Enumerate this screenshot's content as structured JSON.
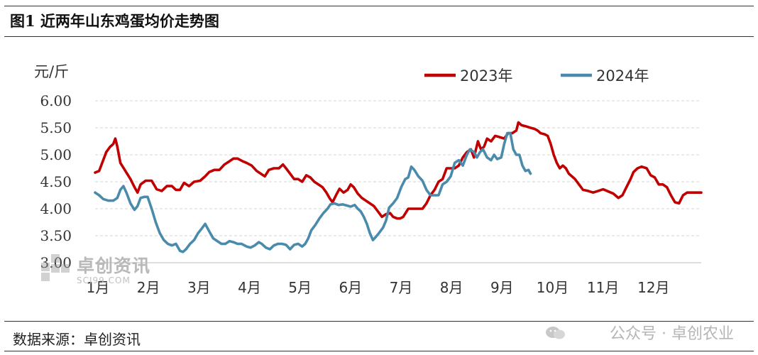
{
  "figure": {
    "title": "图1 近两年山东鸡蛋均价走势图",
    "source": "数据来源：卓创资讯",
    "watermark": "公众号 · 卓创农业",
    "logo_cn": "卓创资讯",
    "logo_en": "SCI99.COM"
  },
  "chart_data": {
    "type": "line",
    "ylabel": "元/斤",
    "ylim": [
      3.0,
      6.0
    ],
    "yticks": [
      "3.00",
      "3.50",
      "4.00",
      "4.50",
      "5.00",
      "5.50",
      "6.00"
    ],
    "ytick_values": [
      3.0,
      3.5,
      4.0,
      4.5,
      5.0,
      5.5,
      6.0
    ],
    "xlim": [
      0,
      12
    ],
    "x_unit": "month index (0 = 1月)",
    "xticks": [
      "1月",
      "2月",
      "3月",
      "4月",
      "5月",
      "6月",
      "7月",
      "8月",
      "9月",
      "10月",
      "11月",
      "12月"
    ],
    "xtick_values": [
      0,
      1,
      2,
      3,
      4,
      5,
      6,
      7,
      8,
      9,
      10,
      11
    ],
    "legend_position": "top-right",
    "grid": "horizontal dashed",
    "series": [
      {
        "name": "2023年",
        "color": "#c00000",
        "points": [
          [
            0.0,
            4.67
          ],
          [
            0.08,
            4.7
          ],
          [
            0.14,
            4.85
          ],
          [
            0.22,
            5.05
          ],
          [
            0.3,
            5.15
          ],
          [
            0.36,
            5.2
          ],
          [
            0.4,
            5.3
          ],
          [
            0.44,
            5.15
          ],
          [
            0.5,
            4.85
          ],
          [
            0.6,
            4.7
          ],
          [
            0.7,
            4.55
          ],
          [
            0.78,
            4.4
          ],
          [
            0.84,
            4.3
          ],
          [
            0.9,
            4.45
          ],
          [
            1.0,
            4.52
          ],
          [
            1.12,
            4.52
          ],
          [
            1.22,
            4.36
          ],
          [
            1.32,
            4.33
          ],
          [
            1.42,
            4.42
          ],
          [
            1.52,
            4.42
          ],
          [
            1.6,
            4.35
          ],
          [
            1.68,
            4.35
          ],
          [
            1.76,
            4.48
          ],
          [
            1.86,
            4.42
          ],
          [
            1.96,
            4.5
          ],
          [
            2.08,
            4.52
          ],
          [
            2.18,
            4.6
          ],
          [
            2.26,
            4.68
          ],
          [
            2.36,
            4.72
          ],
          [
            2.46,
            4.72
          ],
          [
            2.56,
            4.82
          ],
          [
            2.66,
            4.88
          ],
          [
            2.74,
            4.93
          ],
          [
            2.82,
            4.93
          ],
          [
            2.92,
            4.88
          ],
          [
            3.0,
            4.85
          ],
          [
            3.1,
            4.8
          ],
          [
            3.2,
            4.7
          ],
          [
            3.28,
            4.65
          ],
          [
            3.36,
            4.6
          ],
          [
            3.44,
            4.72
          ],
          [
            3.54,
            4.75
          ],
          [
            3.64,
            4.75
          ],
          [
            3.72,
            4.82
          ],
          [
            3.78,
            4.75
          ],
          [
            3.86,
            4.65
          ],
          [
            3.94,
            4.55
          ],
          [
            4.02,
            4.55
          ],
          [
            4.1,
            4.5
          ],
          [
            4.18,
            4.62
          ],
          [
            4.26,
            4.58
          ],
          [
            4.34,
            4.5
          ],
          [
            4.42,
            4.45
          ],
          [
            4.5,
            4.4
          ],
          [
            4.58,
            4.3
          ],
          [
            4.64,
            4.2
          ],
          [
            4.7,
            4.12
          ],
          [
            4.78,
            4.27
          ],
          [
            4.84,
            4.37
          ],
          [
            4.92,
            4.3
          ],
          [
            5.0,
            4.35
          ],
          [
            5.06,
            4.45
          ],
          [
            5.12,
            4.4
          ],
          [
            5.2,
            4.28
          ],
          [
            5.28,
            4.2
          ],
          [
            5.36,
            4.15
          ],
          [
            5.44,
            4.1
          ],
          [
            5.52,
            4.05
          ],
          [
            5.6,
            3.95
          ],
          [
            5.68,
            3.85
          ],
          [
            5.76,
            3.9
          ],
          [
            5.84,
            3.92
          ],
          [
            5.9,
            3.85
          ],
          [
            5.98,
            3.82
          ],
          [
            6.04,
            3.82
          ],
          [
            6.1,
            3.85
          ],
          [
            6.2,
            4.0
          ],
          [
            6.3,
            4.0
          ],
          [
            6.4,
            4.0
          ],
          [
            6.48,
            4.0
          ],
          [
            6.56,
            4.1
          ],
          [
            6.64,
            4.25
          ],
          [
            6.72,
            4.35
          ],
          [
            6.8,
            4.5
          ],
          [
            6.88,
            4.55
          ],
          [
            6.96,
            4.75
          ],
          [
            7.04,
            4.75
          ],
          [
            7.12,
            4.75
          ],
          [
            7.2,
            4.8
          ],
          [
            7.28,
            4.95
          ],
          [
            7.36,
            5.05
          ],
          [
            7.44,
            5.1
          ],
          [
            7.5,
            4.95
          ],
          [
            7.58,
            5.25
          ],
          [
            7.64,
            5.1
          ],
          [
            7.7,
            5.15
          ],
          [
            7.76,
            5.3
          ],
          [
            7.84,
            5.25
          ],
          [
            7.92,
            5.35
          ],
          [
            8.0,
            5.33
          ],
          [
            8.1,
            5.3
          ],
          [
            8.18,
            5.4
          ],
          [
            8.26,
            5.4
          ],
          [
            8.34,
            5.45
          ],
          [
            8.38,
            5.6
          ],
          [
            8.44,
            5.55
          ],
          [
            8.52,
            5.53
          ],
          [
            8.62,
            5.5
          ],
          [
            8.7,
            5.48
          ],
          [
            8.76,
            5.45
          ],
          [
            8.82,
            5.4
          ],
          [
            8.9,
            5.38
          ],
          [
            8.96,
            5.35
          ],
          [
            9.02,
            5.2
          ],
          [
            9.08,
            5.0
          ],
          [
            9.14,
            4.85
          ],
          [
            9.2,
            4.75
          ],
          [
            9.26,
            4.8
          ],
          [
            9.32,
            4.75
          ],
          [
            9.38,
            4.65
          ],
          [
            9.44,
            4.6
          ],
          [
            9.5,
            4.55
          ],
          [
            9.58,
            4.45
          ],
          [
            9.66,
            4.35
          ],
          [
            9.76,
            4.33
          ],
          [
            9.86,
            4.3
          ],
          [
            9.96,
            4.33
          ],
          [
            10.06,
            4.36
          ],
          [
            10.16,
            4.32
          ],
          [
            10.26,
            4.28
          ],
          [
            10.36,
            4.2
          ],
          [
            10.44,
            4.25
          ],
          [
            10.52,
            4.4
          ],
          [
            10.6,
            4.55
          ],
          [
            10.66,
            4.68
          ],
          [
            10.74,
            4.75
          ],
          [
            10.82,
            4.78
          ],
          [
            10.92,
            4.75
          ],
          [
            11.0,
            4.62
          ],
          [
            11.08,
            4.58
          ],
          [
            11.16,
            4.45
          ],
          [
            11.24,
            4.45
          ],
          [
            11.32,
            4.4
          ],
          [
            11.4,
            4.25
          ],
          [
            11.48,
            4.12
          ],
          [
            11.56,
            4.1
          ],
          [
            11.64,
            4.25
          ],
          [
            11.72,
            4.3
          ],
          [
            11.8,
            4.3
          ],
          [
            11.9,
            4.3
          ],
          [
            12.0,
            4.3
          ]
        ]
      },
      {
        "name": "2024年",
        "color": "#4a8bab",
        "points": [
          [
            0.0,
            4.3
          ],
          [
            0.08,
            4.25
          ],
          [
            0.16,
            4.18
          ],
          [
            0.26,
            4.15
          ],
          [
            0.36,
            4.15
          ],
          [
            0.44,
            4.2
          ],
          [
            0.5,
            4.35
          ],
          [
            0.56,
            4.42
          ],
          [
            0.62,
            4.3
          ],
          [
            0.7,
            4.1
          ],
          [
            0.78,
            3.98
          ],
          [
            0.84,
            4.05
          ],
          [
            0.9,
            4.2
          ],
          [
            0.98,
            4.22
          ],
          [
            1.04,
            4.22
          ],
          [
            1.12,
            4.0
          ],
          [
            1.2,
            3.75
          ],
          [
            1.28,
            3.55
          ],
          [
            1.36,
            3.42
          ],
          [
            1.44,
            3.35
          ],
          [
            1.52,
            3.32
          ],
          [
            1.6,
            3.35
          ],
          [
            1.68,
            3.22
          ],
          [
            1.74,
            3.2
          ],
          [
            1.8,
            3.25
          ],
          [
            1.88,
            3.35
          ],
          [
            1.96,
            3.42
          ],
          [
            2.04,
            3.55
          ],
          [
            2.1,
            3.62
          ],
          [
            2.18,
            3.72
          ],
          [
            2.26,
            3.58
          ],
          [
            2.34,
            3.45
          ],
          [
            2.42,
            3.4
          ],
          [
            2.5,
            3.35
          ],
          [
            2.58,
            3.35
          ],
          [
            2.66,
            3.4
          ],
          [
            2.74,
            3.38
          ],
          [
            2.82,
            3.35
          ],
          [
            2.9,
            3.35
          ],
          [
            3.0,
            3.3
          ],
          [
            3.08,
            3.28
          ],
          [
            3.16,
            3.32
          ],
          [
            3.24,
            3.38
          ],
          [
            3.3,
            3.35
          ],
          [
            3.38,
            3.28
          ],
          [
            3.46,
            3.25
          ],
          [
            3.54,
            3.32
          ],
          [
            3.62,
            3.35
          ],
          [
            3.7,
            3.35
          ],
          [
            3.78,
            3.33
          ],
          [
            3.86,
            3.25
          ],
          [
            3.94,
            3.33
          ],
          [
            4.02,
            3.35
          ],
          [
            4.1,
            3.3
          ],
          [
            4.16,
            3.35
          ],
          [
            4.22,
            3.45
          ],
          [
            4.28,
            3.6
          ],
          [
            4.36,
            3.7
          ],
          [
            4.44,
            3.82
          ],
          [
            4.52,
            3.92
          ],
          [
            4.6,
            4.0
          ],
          [
            4.66,
            4.08
          ],
          [
            4.74,
            4.1
          ],
          [
            4.82,
            4.07
          ],
          [
            4.9,
            4.08
          ],
          [
            4.98,
            4.06
          ],
          [
            5.06,
            4.04
          ],
          [
            5.14,
            4.07
          ],
          [
            5.2,
            4.0
          ],
          [
            5.26,
            3.95
          ],
          [
            5.32,
            3.85
          ],
          [
            5.38,
            3.72
          ],
          [
            5.44,
            3.55
          ],
          [
            5.5,
            3.42
          ],
          [
            5.56,
            3.48
          ],
          [
            5.62,
            3.55
          ],
          [
            5.7,
            3.65
          ],
          [
            5.76,
            3.78
          ],
          [
            5.82,
            4.02
          ],
          [
            5.9,
            4.1
          ],
          [
            5.98,
            4.2
          ],
          [
            6.06,
            4.4
          ],
          [
            6.14,
            4.55
          ],
          [
            6.2,
            4.58
          ],
          [
            6.26,
            4.78
          ],
          [
            6.32,
            4.72
          ],
          [
            6.4,
            4.6
          ],
          [
            6.48,
            4.52
          ],
          [
            6.56,
            4.35
          ],
          [
            6.64,
            4.25
          ],
          [
            6.72,
            4.25
          ],
          [
            6.8,
            4.25
          ],
          [
            6.88,
            4.45
          ],
          [
            6.96,
            4.5
          ],
          [
            7.04,
            4.6
          ],
          [
            7.12,
            4.85
          ],
          [
            7.2,
            4.9
          ],
          [
            7.28,
            4.8
          ],
          [
            7.36,
            5.0
          ],
          [
            7.42,
            5.1
          ],
          [
            7.5,
            5.05
          ],
          [
            7.56,
            4.95
          ],
          [
            7.62,
            5.05
          ],
          [
            7.68,
            5.1
          ],
          [
            7.76,
            4.95
          ],
          [
            7.84,
            4.9
          ],
          [
            7.9,
            5.0
          ],
          [
            7.96,
            4.92
          ],
          [
            8.04,
            4.95
          ],
          [
            8.1,
            5.2
          ],
          [
            8.16,
            5.4
          ],
          [
            8.22,
            5.4
          ],
          [
            8.28,
            5.1
          ],
          [
            8.34,
            5.0
          ],
          [
            8.4,
            5.0
          ],
          [
            8.46,
            4.8
          ],
          [
            8.52,
            4.7
          ],
          [
            8.58,
            4.72
          ],
          [
            8.62,
            4.65
          ]
        ]
      }
    ]
  }
}
